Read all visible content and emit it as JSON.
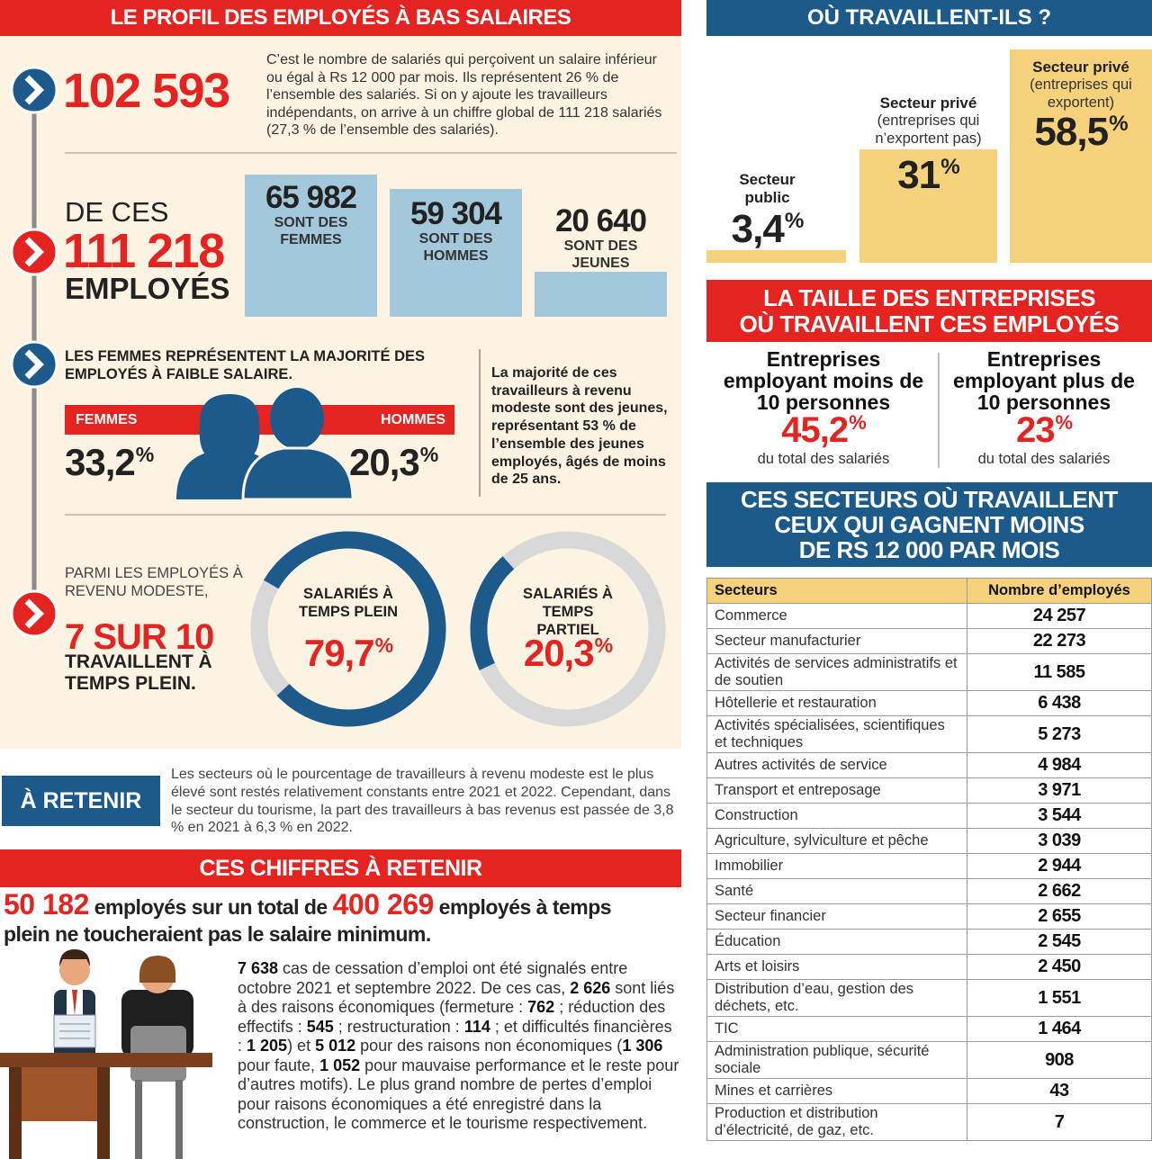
{
  "unit": "%",
  "profile": {
    "title": "LE PROFIL DES EMPLOYÉS À BAS SALAIRES",
    "headline_number": "102 593",
    "headline_text": "C’est le nombre de salariés qui perçoivent un salaire inférieur ou égal à Rs 12 000 par mois. Ils représentent 26 % de l’ensemble des salariés. Si on y ajoute les travailleurs indépendants, on arrive à un chiffre global de 111 218 salariés (27,3 % de l’ensemble des salariés).",
    "total_prefix": "DE CES",
    "total_number": "111 218",
    "total_suffix": "EMPLOYÉS",
    "breakdown": [
      {
        "value": 65982,
        "value_label": "65 982",
        "label": "SONT DES FEMMES"
      },
      {
        "value": 59304,
        "value_label": "59 304",
        "label": "SONT DES HOMMES"
      },
      {
        "value": 20640,
        "value_label": "20 640",
        "label": "SONT DES JEUNES"
      }
    ],
    "gender_heading": "LES FEMMES REPRÉSENTENT LA MAJORITÉ DES EMPLOYÉS À FAIBLE SALAIRE.",
    "women_label": "FEMMES",
    "women_value": "33,2",
    "men_label": "HOMMES",
    "men_value": "20,3",
    "youth_note": "La majorité de ces travailleurs à revenu modeste sont des jeunes, représentant 53 % de l’ensemble des jeunes employés, âgés de moins de 25 ans.",
    "fulltime_intro": "PARMI LES EMPLOYÉS À REVENU MODESTE,",
    "fulltime_number": "7 SUR 10",
    "fulltime_text": "TRAVAILLENT À TEMPS PLEIN.",
    "donuts": [
      {
        "label": "SALARIÉS À TEMPS PLEIN",
        "value": 79.7,
        "value_label": "79,7"
      },
      {
        "label": "SALARIÉS À TEMPS PARTIEL",
        "value": 20.3,
        "value_label": "20,3"
      }
    ]
  },
  "retain": {
    "label": "À RETENIR",
    "text": "Les secteurs où le pourcentage de travailleurs à revenu modeste est le plus élevé sont restés relativement constants entre 2021 et 2022. Cependant, dans le secteur du tourisme, la part des travailleurs à bas revenus est passée de 3,8 % en 2021 à 6,3 % en 2022."
  },
  "figures": {
    "title": "CES CHIFFRES À RETENIR",
    "lead": [
      {
        "text": "50 182",
        "highlight": true
      },
      {
        "text": " employés sur un total de "
      },
      {
        "text": "400 269",
        "highlight": true
      },
      {
        "text": " employés à temps plein ne toucheraient pas le salaire minimum."
      }
    ],
    "body": [
      {
        "text": "7 638",
        "strong": true
      },
      {
        "text": " cas de cessation d’emploi ont été signalés entre octobre 2021 et septembre 2022. De ces cas, "
      },
      {
        "text": "2 626",
        "strong": true
      },
      {
        "text": " sont liés à des raisons économiques (fermeture : "
      },
      {
        "text": "762",
        "strong": true
      },
      {
        "text": " ; réduction des effectifs : "
      },
      {
        "text": "545",
        "strong": true
      },
      {
        "text": " ; restructuration : "
      },
      {
        "text": "114",
        "strong": true
      },
      {
        "text": " ; et difficultés financières : "
      },
      {
        "text": "1 205",
        "strong": true
      },
      {
        "text": ") et "
      },
      {
        "text": "5 012",
        "strong": true
      },
      {
        "text": " pour des raisons non économiques ("
      },
      {
        "text": "1 306",
        "strong": true
      },
      {
        "text": " pour faute, "
      },
      {
        "text": "1 052",
        "strong": true
      },
      {
        "text": " pour mauvaise performance et le reste pour d’autres motifs). Le plus grand nombre de pertes d’emploi pour raisons économiques a été enregistré dans la construction, le commerce et le tourisme respectivement."
      }
    ]
  },
  "workplace": {
    "title": "OÙ TRAVAILLENT-ILS ?",
    "sectors": [
      {
        "name": "Secteur public",
        "value": 3.4,
        "value_label": "3,4"
      },
      {
        "name": "Secteur privé",
        "detail": "(entreprises qui n’exportent pas)",
        "value": 31,
        "value_label": "31"
      },
      {
        "name": "Secteur privé",
        "detail": "(entreprises qui exportent)",
        "value": 58.5,
        "value_label": "58,5"
      }
    ]
  },
  "sizes": {
    "title_lines": [
      "LA TAILLE DES ENTREPRISES",
      "OÙ TRAVAILLENT CES EMPLOYÉS"
    ],
    "items": [
      {
        "title": "Entreprises employant moins de 10 personnes",
        "value_label": "45,2",
        "note": "du total des salariés"
      },
      {
        "title": "Entreprises employant plus de 10 personnes",
        "value_label": "23",
        "note": "du total des salariés"
      }
    ]
  },
  "table": {
    "title_lines": [
      "CES SECTEURS OÙ TRAVAILLENT",
      "CEUX QUI GAGNENT MOINS",
      "DE RS 12 000 PAR MOIS"
    ],
    "header": [
      "Secteurs",
      "Nombre d’employés"
    ],
    "rows": [
      [
        "Commerce",
        "24 257"
      ],
      [
        "Secteur manufacturier",
        "22 273"
      ],
      [
        "Activités de services administratifs et de soutien",
        "11 585"
      ],
      [
        "Hôtellerie et restauration",
        "6 438"
      ],
      [
        "Activités spécialisées, scientifiques et techniques",
        "5 273"
      ],
      [
        "Autres activités de service",
        "4 984"
      ],
      [
        "Transport et entreposage",
        "3 971"
      ],
      [
        "Construction",
        "3 544"
      ],
      [
        "Agriculture, sylviculture et pêche",
        "3 039"
      ],
      [
        "Immobilier",
        "2 944"
      ],
      [
        "Santé",
        "2 662"
      ],
      [
        "Secteur financier",
        "2 655"
      ],
      [
        "Éducation",
        "2 545"
      ],
      [
        "Arts et loisirs",
        "2 450"
      ],
      [
        "Distribution d’eau, gestion des déchets, etc.",
        "1 551"
      ],
      [
        "TIC",
        "1 464"
      ],
      [
        "Administration publique, sécurité sociale",
        "908"
      ],
      [
        "Mines et carrières",
        "43"
      ],
      [
        "Production et distribution d’électricité, de gaz, etc.",
        "7"
      ]
    ]
  }
}
